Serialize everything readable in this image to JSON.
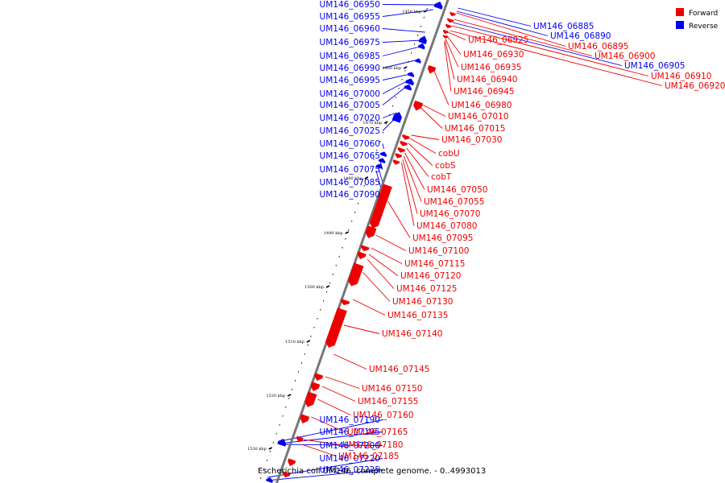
{
  "caption": "Escherichia coli UM146, complete genome. - 0..4993013",
  "legend": [
    {
      "label": "Forward",
      "color": "#ee0000"
    },
    {
      "label": "Reverse",
      "color": "#0000ee"
    }
  ],
  "colors": {
    "forward": "#ee0000",
    "reverse": "#0000ee",
    "axis": "#777777"
  },
  "ticks": [
    "1450 kbp",
    "1460 kbp",
    "1470 kbp",
    "1480 kbp",
    "1490 kbp",
    "1500 kbp",
    "1510 kbp",
    "1520 kbp",
    "1530 kbp"
  ],
  "left_labels": [
    "UM146_06950",
    "UM146_06955",
    "UM146_06960",
    "UM146_06975",
    "UM146_06985",
    "UM146_06990",
    "UM146_06995",
    "UM146_07000",
    "UM146_07005",
    "UM146_07020",
    "UM146_07025",
    "UM146_07060",
    "UM146_07065",
    "UM146_07075",
    "UM146_07085",
    "UM146_07090",
    "UM146_07190",
    "UM146_07195",
    "UM146_07200",
    "UM146_07220",
    "UM146_07225"
  ],
  "top_right_labels": [
    {
      "name": "UM146_06885",
      "strand": "reverse"
    },
    {
      "name": "UM146_06890",
      "strand": "reverse"
    },
    {
      "name": "UM146_06895",
      "strand": "forward"
    },
    {
      "name": "UM146_06900",
      "strand": "forward"
    },
    {
      "name": "UM146_06905",
      "strand": "reverse"
    },
    {
      "name": "UM146_06910",
      "strand": "forward"
    },
    {
      "name": "UM146_06920",
      "strand": "forward"
    }
  ],
  "right_labels": [
    "UM146_06925",
    "UM146_06930",
    "UM146_06935",
    "UM146_06940",
    "UM146_06945",
    "UM146_06980",
    "UM146_07010",
    "UM146_07015",
    "UM146_07030",
    "cobU",
    "cobS",
    "cobT",
    "UM146_07050",
    "UM146_07055",
    "UM146_07070",
    "UM146_07080",
    "UM146_07095",
    "UM146_07100",
    "UM146_07115",
    "UM146_07120",
    "UM146_07125",
    "UM146_07130",
    "UM146_07135",
    "UM146_07140",
    "UM146_07145",
    "UM146_07150",
    "UM146_07155",
    "UM146_07160",
    "UM146_07165",
    "UM146_07180",
    "UM146_07185"
  ]
}
